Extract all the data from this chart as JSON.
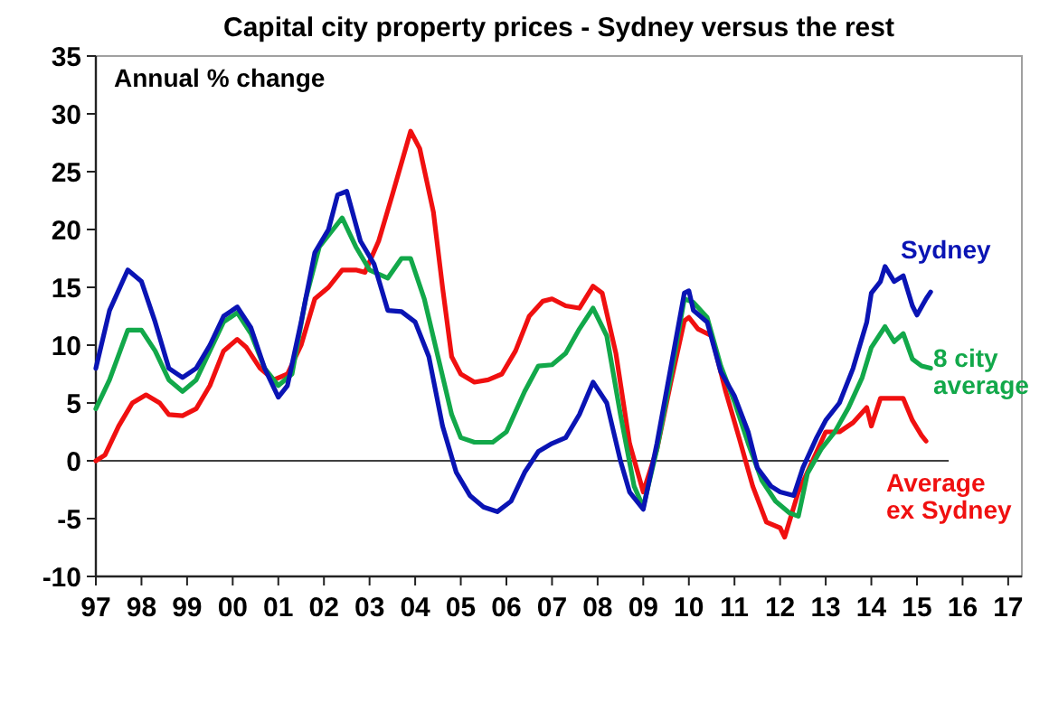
{
  "chart_data": {
    "type": "line",
    "title": "Capital city property prices - Sydney versus the rest",
    "ylabel": "Annual % change",
    "xlim": [
      1997,
      2017.3
    ],
    "ylim": [
      -10,
      35
    ],
    "xticks": [
      {
        "value": 1997,
        "label": "97"
      },
      {
        "value": 1998,
        "label": "98"
      },
      {
        "value": 1999,
        "label": "99"
      },
      {
        "value": 2000,
        "label": "00"
      },
      {
        "value": 2001,
        "label": "01"
      },
      {
        "value": 2002,
        "label": "02"
      },
      {
        "value": 2003,
        "label": "03"
      },
      {
        "value": 2004,
        "label": "04"
      },
      {
        "value": 2005,
        "label": "05"
      },
      {
        "value": 2006,
        "label": "06"
      },
      {
        "value": 2007,
        "label": "07"
      },
      {
        "value": 2008,
        "label": "08"
      },
      {
        "value": 2009,
        "label": "09"
      },
      {
        "value": 2010,
        "label": "10"
      },
      {
        "value": 2011,
        "label": "11"
      },
      {
        "value": 2012,
        "label": "12"
      },
      {
        "value": 2013,
        "label": "13"
      },
      {
        "value": 2014,
        "label": "14"
      },
      {
        "value": 2015,
        "label": "15"
      },
      {
        "value": 2016,
        "label": "16"
      },
      {
        "value": 2017,
        "label": "17"
      }
    ],
    "yticks": [
      -10,
      -5,
      0,
      5,
      10,
      15,
      20,
      25,
      30,
      35
    ],
    "grid": false,
    "legend": false,
    "marker": "none",
    "line_style": "solid",
    "ref_lines": [
      {
        "axis": "y",
        "value": 0,
        "color": "#404040"
      }
    ],
    "series": [
      {
        "name": "Sydney",
        "color": "#0a14b4",
        "x": [
          1997.0,
          1997.3,
          1997.7,
          1998.0,
          1998.3,
          1998.6,
          1998.9,
          1999.2,
          1999.5,
          1999.8,
          2000.1,
          2000.4,
          2000.7,
          2001.0,
          2001.2,
          2001.5,
          2001.8,
          2002.1,
          2002.3,
          2002.5,
          2002.8,
          2003.1,
          2003.4,
          2003.7,
          2004.0,
          2004.3,
          2004.6,
          2004.9,
          2005.2,
          2005.5,
          2005.8,
          2006.1,
          2006.4,
          2006.7,
          2007.0,
          2007.3,
          2007.6,
          2007.9,
          2008.2,
          2008.5,
          2008.7,
          2009.0,
          2009.3,
          2009.6,
          2009.9,
          2010.0,
          2010.1,
          2010.4,
          2010.7,
          2011.0,
          2011.3,
          2011.5,
          2011.8,
          2012.0,
          2012.3,
          2012.5,
          2012.8,
          2013.0,
          2013.3,
          2013.6,
          2013.9,
          2014.0,
          2014.2,
          2014.3,
          2014.5,
          2014.7,
          2014.9,
          2015.0,
          2015.2,
          2015.3
        ],
        "values": [
          8,
          13,
          16.5,
          15.5,
          12,
          8,
          7.2,
          8,
          10,
          12.5,
          13.3,
          11.5,
          8,
          5.5,
          6.5,
          12,
          18,
          20,
          23,
          23.3,
          19,
          17,
          13,
          12.9,
          12,
          9,
          3,
          -1,
          -3,
          -4,
          -4.4,
          -3.5,
          -1,
          0.8,
          1.5,
          2,
          4,
          6.8,
          5,
          0,
          -2.7,
          -4.2,
          1.5,
          8,
          14.5,
          14.7,
          13,
          12,
          7.7,
          5.6,
          2.5,
          -0.6,
          -2.2,
          -2.7,
          -3,
          -0.6,
          2,
          3.5,
          5,
          8,
          12,
          14.5,
          15.5,
          16.8,
          15.5,
          16,
          13.4,
          12.6,
          14,
          14.6
        ]
      },
      {
        "name": "8 city average",
        "color": "#12a84a",
        "x": [
          1997.0,
          1997.3,
          1997.7,
          1998.0,
          1998.3,
          1998.6,
          1998.9,
          1999.2,
          1999.5,
          1999.8,
          2000.1,
          2000.4,
          2000.7,
          2001.0,
          2001.3,
          2001.6,
          2001.9,
          2002.2,
          2002.4,
          2002.7,
          2003.0,
          2003.4,
          2003.7,
          2003.9,
          2004.2,
          2004.5,
          2004.8,
          2005.0,
          2005.3,
          2005.7,
          2006.0,
          2006.4,
          2006.7,
          2007.0,
          2007.3,
          2007.6,
          2007.9,
          2008.2,
          2008.5,
          2008.8,
          2009.0,
          2009.3,
          2009.6,
          2009.9,
          2010.1,
          2010.4,
          2010.7,
          2011.0,
          2011.3,
          2011.6,
          2011.9,
          2012.2,
          2012.4,
          2012.6,
          2012.9,
          2013.2,
          2013.5,
          2013.8,
          2014.0,
          2014.3,
          2014.5,
          2014.7,
          2014.9,
          2015.1,
          2015.3
        ],
        "values": [
          4.5,
          7,
          11.3,
          11.3,
          9.5,
          7,
          6,
          7,
          9.5,
          12,
          12.8,
          11,
          8,
          6.5,
          7.5,
          14,
          18.5,
          20,
          21,
          18.5,
          16.5,
          15.8,
          17.5,
          17.5,
          14,
          9,
          4,
          2,
          1.6,
          1.6,
          2.5,
          6,
          8.2,
          8.3,
          9.3,
          11.4,
          13.2,
          10.8,
          4,
          -2.2,
          -4,
          1,
          7.2,
          14,
          13.7,
          12.4,
          8.2,
          5.1,
          1.5,
          -1.7,
          -3.5,
          -4.5,
          -4.8,
          -1.1,
          1,
          2.5,
          4.6,
          7.2,
          9.8,
          11.6,
          10.3,
          11,
          8.8,
          8.2,
          8
        ]
      },
      {
        "name": "Average ex Sydney",
        "color": "#f01010",
        "x": [
          1997.0,
          1997.2,
          1997.5,
          1997.8,
          1998.1,
          1998.4,
          1998.6,
          1998.9,
          1999.2,
          1999.5,
          1999.8,
          2000.1,
          2000.3,
          2000.6,
          2000.9,
          2001.2,
          2001.5,
          2001.8,
          2002.1,
          2002.4,
          2002.7,
          2002.9,
          2003.2,
          2003.5,
          2003.9,
          2004.1,
          2004.4,
          2004.6,
          2004.8,
          2005.0,
          2005.3,
          2005.6,
          2005.9,
          2006.2,
          2006.5,
          2006.8,
          2007.0,
          2007.3,
          2007.6,
          2007.9,
          2008.1,
          2008.4,
          2008.7,
          2009.0,
          2009.3,
          2009.6,
          2009.9,
          2010.0,
          2010.2,
          2010.5,
          2010.8,
          2011.1,
          2011.4,
          2011.7,
          2012.0,
          2012.1,
          2012.4,
          2012.7,
          2013.0,
          2013.3,
          2013.6,
          2013.9,
          2014.0,
          2014.2,
          2014.4,
          2014.7,
          2014.9,
          2015.1,
          2015.2
        ],
        "values": [
          0,
          0.5,
          3,
          5,
          5.7,
          5,
          4,
          3.9,
          4.5,
          6.5,
          9.5,
          10.5,
          9.8,
          8,
          7,
          7.5,
          10,
          14,
          15,
          16.5,
          16.5,
          16.3,
          19,
          23,
          28.5,
          27,
          21.5,
          15,
          9,
          7.5,
          6.8,
          7,
          7.5,
          9.5,
          12.5,
          13.8,
          14,
          13.4,
          13.2,
          15.1,
          14.5,
          9.3,
          1.5,
          -2.7,
          1,
          6.7,
          12.1,
          12.4,
          11.4,
          10.8,
          6.1,
          2,
          -2.2,
          -5.3,
          -5.8,
          -6.6,
          -2.7,
          -0.1,
          2.5,
          2.5,
          3.3,
          4.6,
          3,
          5.4,
          5.4,
          5.4,
          3.5,
          2.2,
          1.7
        ]
      }
    ]
  }
}
